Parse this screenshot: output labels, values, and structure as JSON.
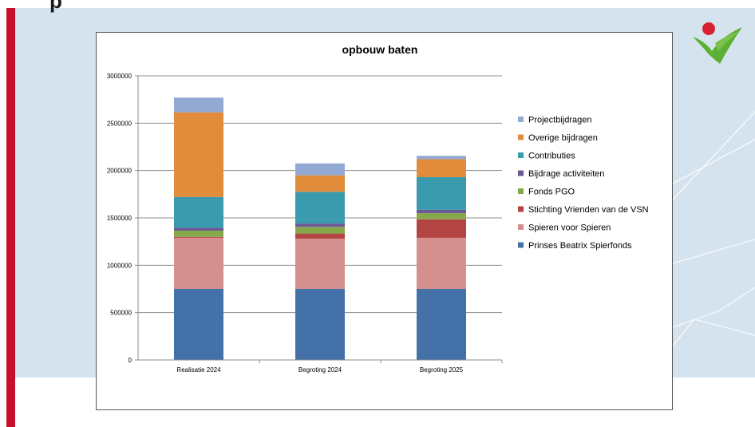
{
  "slide": {
    "title_fragment": "p"
  },
  "colors": {
    "red_bar": "#c8102e",
    "band": "#d5e3ee",
    "logo_green": "#5bb033",
    "logo_red": "#d9202f"
  },
  "chart_data": {
    "type": "bar",
    "stacked": true,
    "title": "opbouw baten",
    "xlabel": "",
    "ylabel": "",
    "ylim": [
      0,
      3000000
    ],
    "yticks": [
      0,
      500000,
      1000000,
      1500000,
      2000000,
      2500000,
      3000000
    ],
    "ytick_labels": [
      "0",
      "500000",
      "1000000",
      "1500000",
      "2000000",
      "2500000",
      "3000000"
    ],
    "grid": true,
    "legend_position": "right",
    "categories": [
      "Realisatie 2024",
      "Begroting 2024",
      "Begroting 2025"
    ],
    "series": [
      {
        "name": "Prinses Beatrix Spierfonds",
        "color": "#4472a8",
        "values": [
          750000,
          750000,
          750000
        ]
      },
      {
        "name": "Spieren voor Spieren",
        "color": "#d4908f",
        "values": [
          540000,
          530000,
          540000
        ]
      },
      {
        "name": "Stichting Vrienden van de VSN",
        "color": "#b24444",
        "values": [
          10000,
          55000,
          195000
        ]
      },
      {
        "name": "Fonds PGO",
        "color": "#85a94a",
        "values": [
          65000,
          70000,
          65000
        ]
      },
      {
        "name": "Bijdrage activiteiten",
        "color": "#6d5a94",
        "values": [
          30000,
          35000,
          35000
        ]
      },
      {
        "name": "Contributies",
        "color": "#3b9bae",
        "values": [
          325000,
          335000,
          345000
        ]
      },
      {
        "name": "Overige bijdragen",
        "color": "#e08c3a",
        "values": [
          895000,
          175000,
          190000
        ]
      },
      {
        "name": "Projectbijdragen",
        "color": "#92a9d4",
        "values": [
          155000,
          125000,
          35000
        ]
      }
    ],
    "legend_order": [
      "Projectbijdragen",
      "Overige bijdragen",
      "Contributies",
      "Bijdrage activiteiten",
      "Fonds PGO",
      "Stichting Vrienden van de VSN",
      "Spieren voor Spieren",
      "Prinses Beatrix Spierfonds"
    ]
  }
}
